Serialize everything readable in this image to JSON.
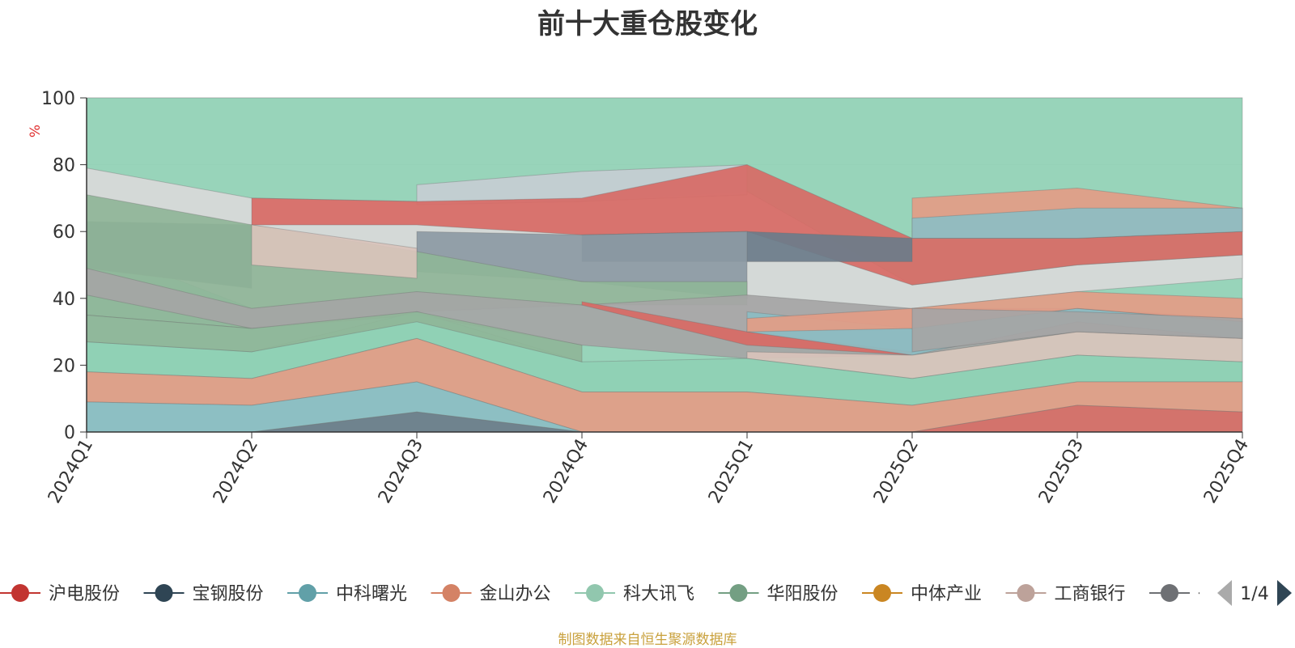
{
  "title": "前十大重仓股变化",
  "source_note": "制图数据来自恒生聚源数据库",
  "legend": {
    "page_indicator": "1/4",
    "visible_items": [
      "沪电股份",
      "宝钢股份",
      "中科曙光",
      "金山办公",
      "科大讯飞",
      "华阳股份",
      "中体产业",
      "工商银行",
      "亻"
    ]
  },
  "chart_data": {
    "type": "area",
    "stacked": false,
    "title": "前十大重仓股变化",
    "ylabel": "%",
    "xlabel": "",
    "ylim": [
      0,
      100
    ],
    "yticks": [
      0,
      20,
      40,
      60,
      80,
      100
    ],
    "grid": true,
    "legend_position": "bottom",
    "categories": [
      "2024Q1",
      "2024Q2",
      "2024Q3",
      "2024Q4",
      "2025Q1",
      "2025Q2",
      "2025Q3",
      "2025Q4"
    ],
    "bands": [
      {
        "color": "#8fd0b4",
        "values": [
          [
            0,
            100
          ],
          [
            0,
            100
          ],
          [
            0,
            100
          ],
          [
            0,
            100
          ],
          [
            0,
            100
          ],
          [
            0,
            100
          ],
          [
            0,
            100
          ],
          [
            0,
            100
          ]
        ]
      },
      {
        "color": "#d9d9d9",
        "values": [
          [
            56,
            79
          ],
          [
            37,
            70
          ],
          [
            42,
            69
          ],
          [
            38,
            69
          ],
          [
            26,
            72
          ],
          [
            37,
            44
          ],
          [
            42,
            50
          ],
          [
            46,
            53
          ]
        ]
      },
      {
        "color": "#c6cdd2",
        "values": [
          [
            null,
            null
          ],
          [
            null,
            null
          ],
          [
            68,
            74
          ],
          [
            69,
            78
          ],
          [
            71,
            80
          ],
          [
            null,
            null
          ],
          [
            null,
            null
          ],
          [
            null,
            null
          ]
        ]
      },
      {
        "color": "#d86a65",
        "values": [
          [
            null,
            null
          ],
          [
            62,
            70
          ],
          [
            62,
            69
          ],
          [
            59,
            70
          ],
          [
            60,
            80
          ],
          [
            44,
            58
          ],
          [
            50,
            58
          ],
          [
            53,
            60
          ]
        ]
      },
      {
        "color": "#e39c86",
        "values": [
          [
            null,
            null
          ],
          [
            null,
            null
          ],
          [
            null,
            null
          ],
          [
            null,
            null
          ],
          [
            null,
            null
          ],
          [
            58,
            70
          ],
          [
            58,
            73
          ],
          [
            60,
            67
          ]
        ]
      },
      {
        "color": "#8cbdc3",
        "values": [
          [
            null,
            null
          ],
          [
            null,
            null
          ],
          [
            null,
            null
          ],
          [
            null,
            null
          ],
          [
            null,
            null
          ],
          [
            58,
            64
          ],
          [
            58,
            67
          ],
          [
            60,
            67
          ]
        ]
      },
      {
        "color": "#6b7c8a",
        "values": [
          [
            49,
            63
          ],
          [
            43,
            62
          ],
          [
            null,
            null
          ],
          [
            51,
            59
          ],
          [
            51,
            60
          ],
          [
            51,
            58
          ],
          [
            null,
            null
          ],
          [
            null,
            null
          ]
        ]
      },
      {
        "color": "#8c9aa4",
        "values": [
          [
            null,
            null
          ],
          [
            null,
            null
          ],
          [
            48,
            60
          ],
          [
            45,
            59
          ],
          [
            40,
            60
          ],
          [
            null,
            null
          ],
          [
            null,
            null
          ],
          [
            null,
            null
          ]
        ]
      },
      {
        "color": "#8fb598",
        "values": [
          [
            35,
            71
          ],
          [
            31,
            62
          ],
          [
            36,
            54
          ],
          [
            38,
            45
          ],
          [
            38,
            45
          ],
          [
            null,
            null
          ],
          [
            null,
            null
          ],
          [
            40,
            46
          ]
        ]
      },
      {
        "color": "#d9c3bb",
        "values": [
          [
            null,
            null
          ],
          [
            50,
            62
          ],
          [
            46,
            55
          ],
          [
            null,
            null
          ],
          [
            null,
            null
          ],
          [
            null,
            null
          ],
          [
            null,
            null
          ],
          [
            null,
            null
          ]
        ]
      },
      {
        "color": "#a5a5a5",
        "values": [
          [
            41,
            49
          ],
          [
            31,
            37
          ],
          [
            35,
            42
          ],
          [
            26,
            38
          ],
          [
            22,
            41
          ],
          [
            23,
            37
          ],
          [
            30,
            37
          ],
          [
            28,
            34
          ]
        ]
      },
      {
        "color": "#e2ab56",
        "values": [
          [
            35,
            42
          ],
          [
            null,
            null
          ],
          [
            null,
            null
          ],
          [
            null,
            null
          ],
          [
            37,
            41
          ],
          [
            null,
            null
          ],
          [
            null,
            null
          ],
          [
            null,
            null
          ]
        ]
      },
      {
        "color": "#d86a65",
        "values": [
          [
            null,
            null
          ],
          [
            null,
            null
          ],
          [
            null,
            null
          ],
          [
            38,
            39
          ],
          [
            26,
            30
          ],
          [
            23,
            24
          ],
          [
            null,
            null
          ],
          [
            null,
            null
          ]
        ]
      },
      {
        "color": "#8cbdc3",
        "values": [
          [
            null,
            null
          ],
          [
            null,
            null
          ],
          [
            null,
            null
          ],
          [
            null,
            null
          ],
          [
            30,
            36
          ],
          [
            23,
            31
          ],
          [
            33,
            37
          ],
          [
            28,
            33
          ]
        ]
      },
      {
        "color": "#e39c86",
        "values": [
          [
            null,
            null
          ],
          [
            null,
            null
          ],
          [
            null,
            null
          ],
          [
            null,
            null
          ],
          [
            30,
            34
          ],
          [
            31,
            37
          ],
          [
            37,
            42
          ],
          [
            33,
            40
          ]
        ]
      },
      {
        "color": "#d9c3bb",
        "values": [
          [
            null,
            null
          ],
          [
            null,
            null
          ],
          [
            null,
            null
          ],
          [
            null,
            null
          ],
          [
            22,
            24
          ],
          [
            16,
            23
          ],
          [
            23,
            30
          ],
          [
            21,
            28
          ]
        ]
      },
      {
        "color": "#a5a5a5",
        "values": [
          [
            null,
            null
          ],
          [
            null,
            null
          ],
          [
            null,
            null
          ],
          [
            null,
            null
          ],
          [
            null,
            null
          ],
          [
            24,
            37
          ],
          [
            30,
            36
          ],
          [
            28,
            34
          ]
        ]
      },
      {
        "color": "#8fd0b4",
        "values": [
          [
            18,
            27
          ],
          [
            16,
            24
          ],
          [
            28,
            36
          ],
          [
            12,
            21
          ],
          [
            12,
            22
          ],
          [
            8,
            16
          ],
          [
            15,
            23
          ],
          [
            15,
            21
          ]
        ]
      },
      {
        "color": "#8fb598",
        "values": [
          [
            27,
            35
          ],
          [
            24,
            31
          ],
          [
            33,
            36
          ],
          [
            21,
            26
          ],
          [
            null,
            null
          ],
          [
            null,
            null
          ],
          [
            null,
            null
          ],
          [
            null,
            null
          ]
        ]
      },
      {
        "color": "#e39c86",
        "values": [
          [
            9,
            18
          ],
          [
            8,
            16
          ],
          [
            15,
            28
          ],
          [
            0,
            12
          ],
          [
            0,
            12
          ],
          [
            0,
            8
          ],
          [
            8,
            15
          ],
          [
            6,
            15
          ]
        ]
      },
      {
        "color": "#8cbdc3",
        "values": [
          [
            0,
            9
          ],
          [
            0,
            8
          ],
          [
            6,
            15
          ],
          [
            0,
            0
          ],
          [
            null,
            null
          ],
          [
            null,
            null
          ],
          [
            null,
            null
          ],
          [
            null,
            null
          ]
        ]
      },
      {
        "color": "#6b7c8a",
        "values": [
          [
            null,
            null
          ],
          [
            0,
            0
          ],
          [
            0,
            6
          ],
          [
            0,
            0
          ],
          [
            null,
            null
          ],
          [
            null,
            null
          ],
          [
            null,
            null
          ],
          [
            null,
            null
          ]
        ]
      },
      {
        "color": "#d86a65",
        "values": [
          [
            null,
            null
          ],
          [
            null,
            null
          ],
          [
            null,
            null
          ],
          [
            null,
            null
          ],
          [
            null,
            null
          ],
          [
            0,
            0
          ],
          [
            0,
            8
          ],
          [
            0,
            6
          ]
        ]
      }
    ],
    "legend_colors": [
      "#c23531",
      "#2f4554",
      "#61a0a8",
      "#d48265",
      "#91c7ae",
      "#749f83",
      "#ca8622",
      "#bda29a",
      "#6e7074"
    ]
  }
}
